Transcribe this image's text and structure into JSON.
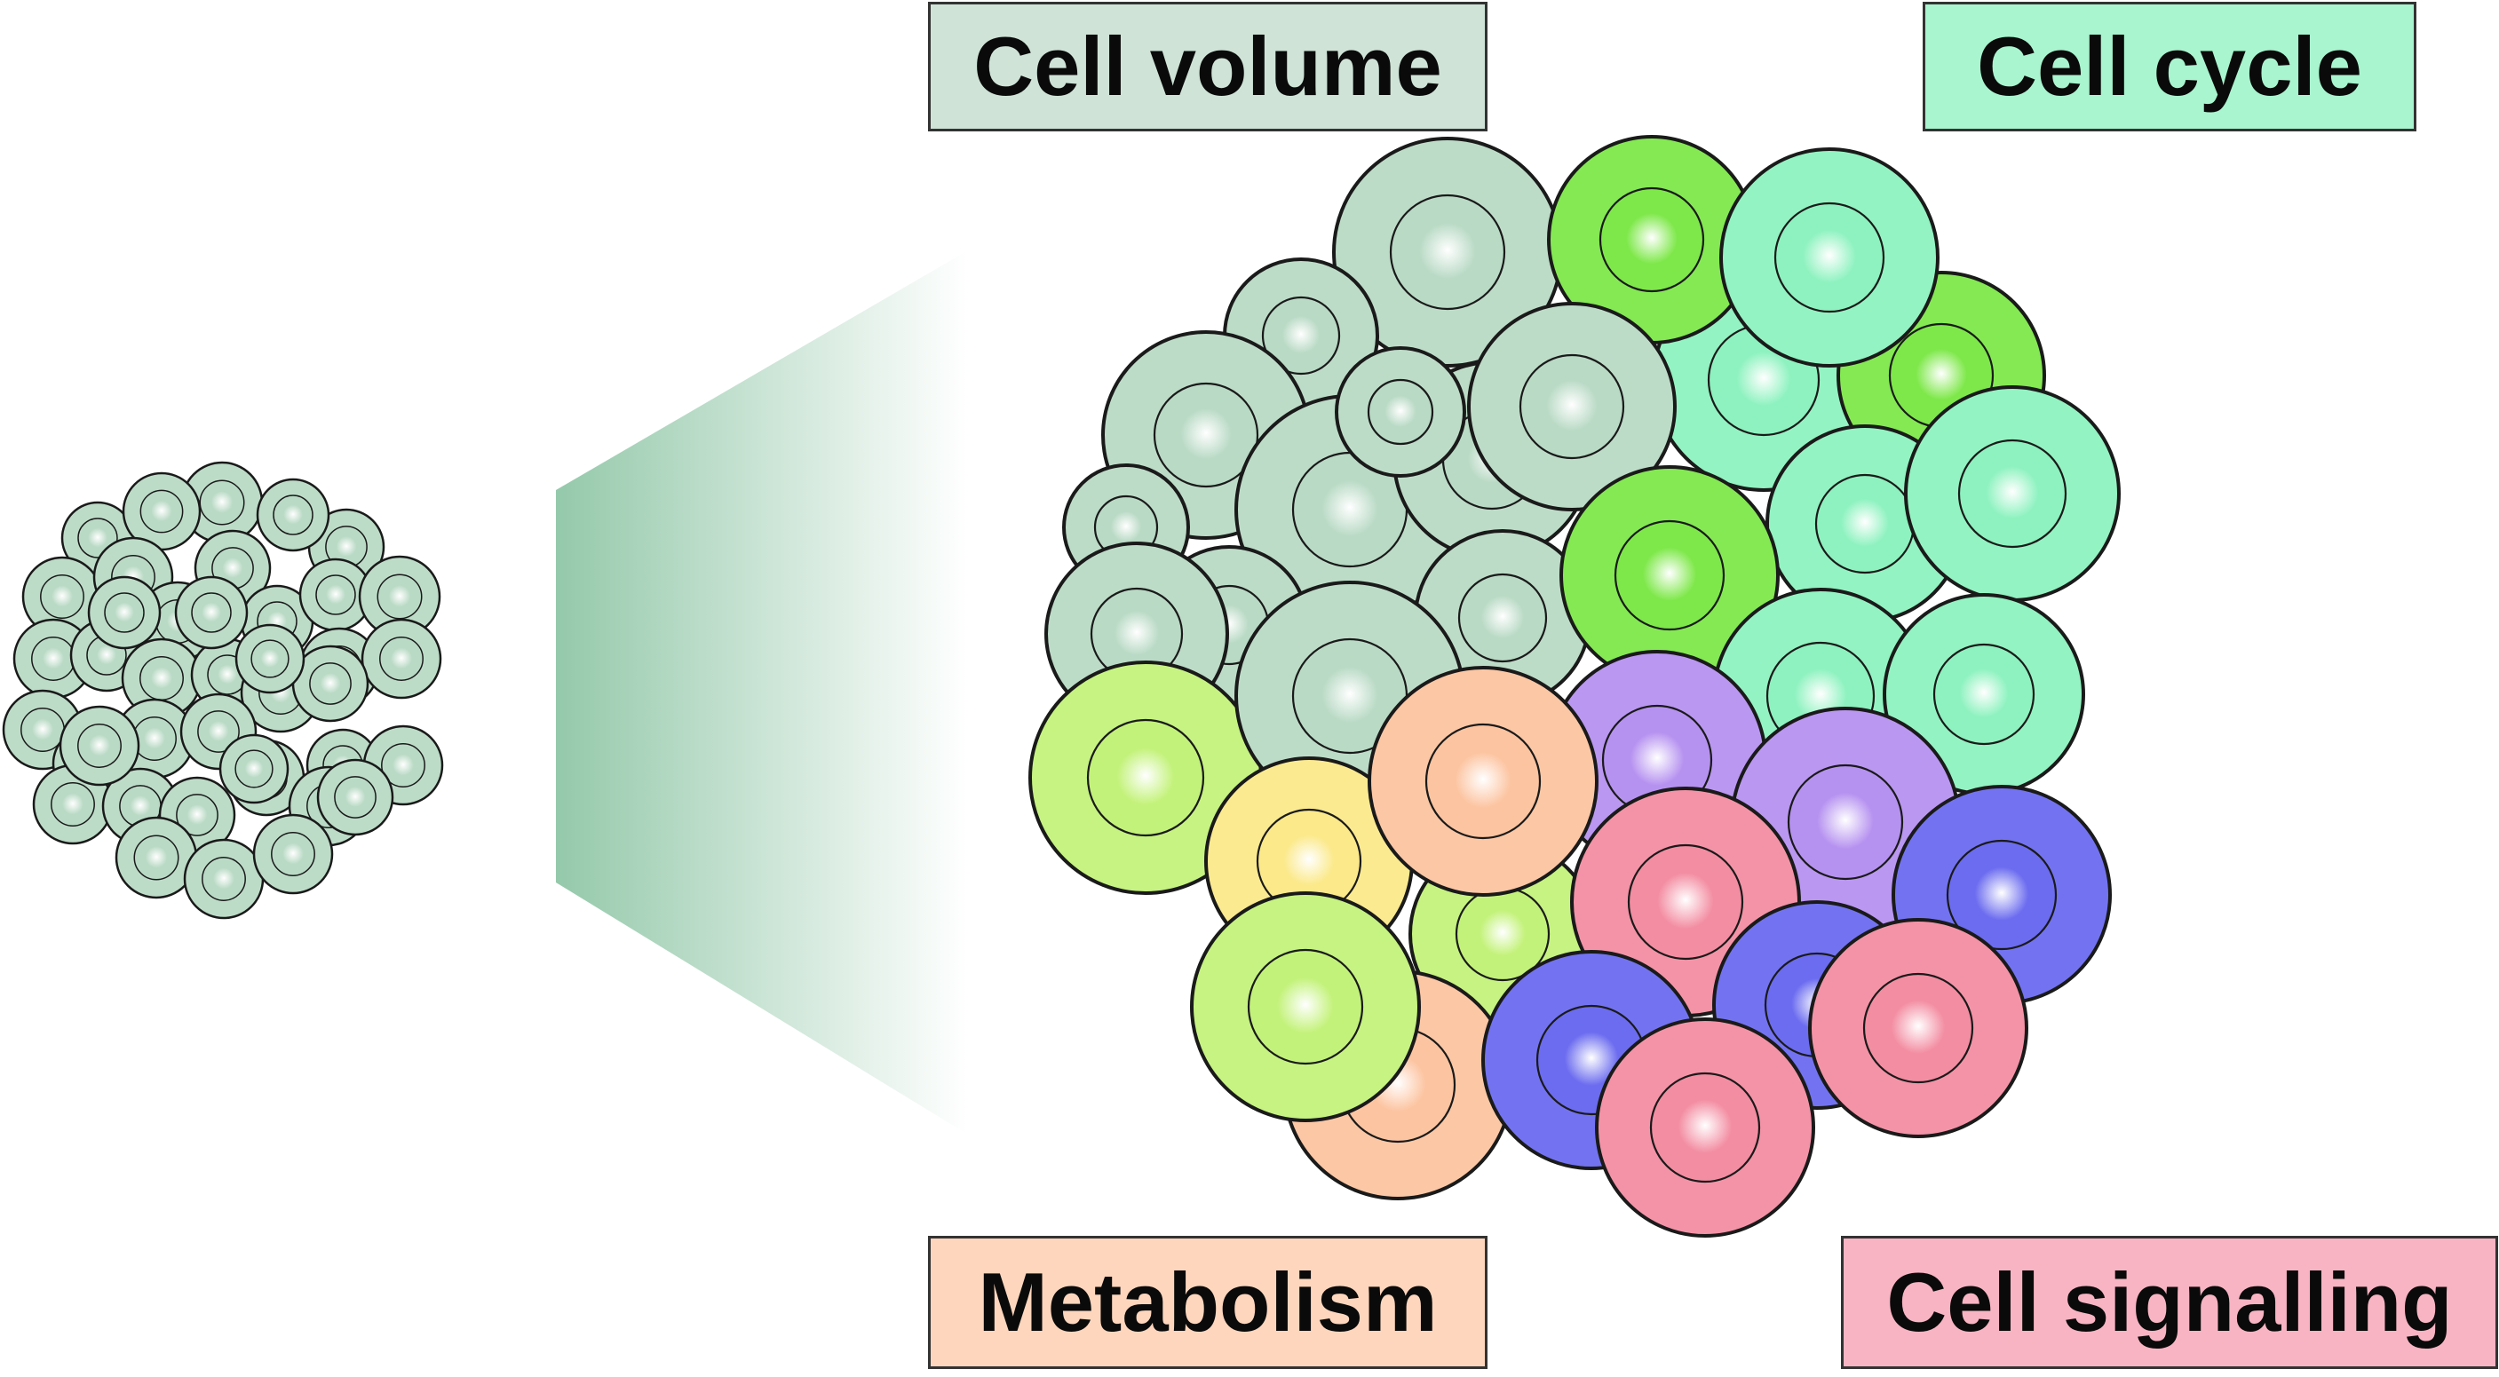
{
  "labels": {
    "cell_volume": "Cell volume",
    "cell_cycle": "Cell cycle",
    "metabolism": "Metabolism",
    "cell_signalling": "Cell signalling"
  },
  "colors": {
    "cell_volume_box": "#cfe3d7",
    "cell_cycle_box": "#a8f5cf",
    "metabolism_box": "#fdd6bd",
    "cell_signalling_box": "#f8b4c3",
    "homogeneous_cell": "#b9dac5",
    "mint_cell": "#8df2bf",
    "lime_cell": "#7ee84a",
    "yellowgreen_cell": "#c3f27a",
    "peach_cell": "#fcc4a0",
    "yellow_cell": "#fbe98a",
    "violet_cell": "#b692f0",
    "blue_cell": "#6c6cf0",
    "pink_cell": "#f38da2",
    "zoom_gradient": "#8fc6a6"
  }
}
